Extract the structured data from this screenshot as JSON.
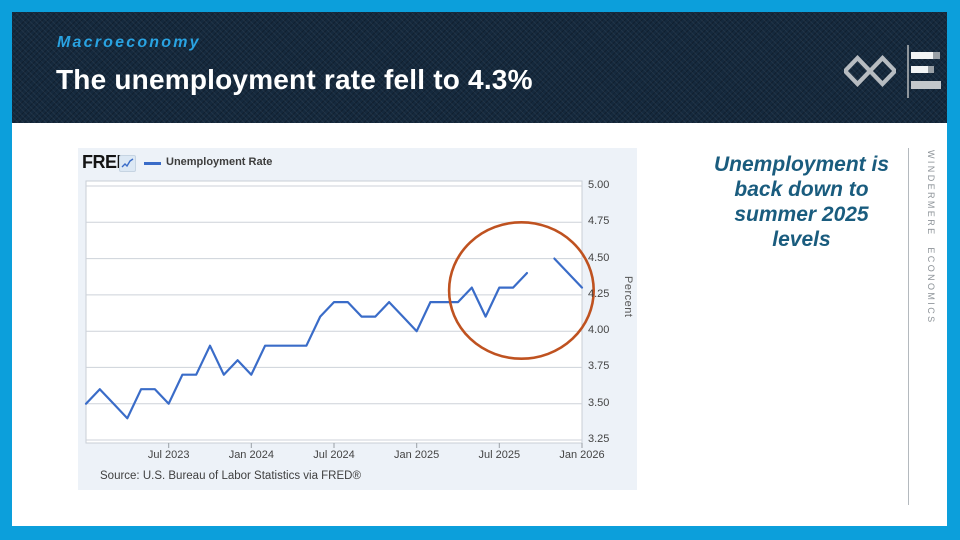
{
  "slide": {
    "eyebrow": "Macroeconomy",
    "title": "The unemployment rate fell to 4.3%",
    "callout": "Unemployment is back down to summer 2025 levels",
    "sidebar_brand": "WINDERMERE ECONOMICS",
    "accent_color": "#0c9fdb",
    "header_bg": "#15293d",
    "eyebrow_color": "#29a3e2",
    "callout_color": "#1a5c7e"
  },
  "fred": {
    "logo": "FRED",
    "legend_label": "Unemployment Rate",
    "source": "Source: U.S. Bureau of Labor Statistics via FRED®",
    "line_color": "#3a6cc8",
    "annotation_color": "#bf5220",
    "card_bg": "#edf2f8"
  },
  "chart_data": {
    "type": "line",
    "title": "Unemployment Rate",
    "xlabel": "",
    "ylabel": "Percent",
    "ylim": [
      3.25,
      5.0
    ],
    "grid": true,
    "legend_position": "top-left",
    "y_ticks": [
      "5.00",
      "4.75",
      "4.50",
      "4.25",
      "4.00",
      "3.75",
      "3.50",
      "3.25"
    ],
    "x_ticks": [
      "Jul 2023",
      "Jan 2024",
      "Jul 2024",
      "Jan 2025",
      "Jul 2025",
      "Jan 2026"
    ],
    "months": [
      "Jan 2023",
      "Feb 2023",
      "Mar 2023",
      "Apr 2023",
      "May 2023",
      "Jun 2023",
      "Jul 2023",
      "Aug 2023",
      "Sep 2023",
      "Oct 2023",
      "Nov 2023",
      "Dec 2023",
      "Jan 2024",
      "Feb 2024",
      "Mar 2024",
      "Apr 2024",
      "May 2024",
      "Jun 2024",
      "Jul 2024",
      "Aug 2024",
      "Sep 2024",
      "Oct 2024",
      "Nov 2024",
      "Dec 2024",
      "Jan 2025",
      "Feb 2025",
      "Mar 2025",
      "Apr 2025",
      "May 2025",
      "Jun 2025",
      "Jul 2025",
      "Aug 2025",
      "Sep 2025",
      "Oct 2025",
      "Nov 2025",
      "Dec 2025",
      "Jan 2026"
    ],
    "series": [
      {
        "name": "Unemployment Rate",
        "values": [
          3.5,
          3.6,
          3.5,
          3.4,
          3.6,
          3.6,
          3.5,
          3.7,
          3.7,
          3.9,
          3.7,
          3.8,
          3.7,
          3.9,
          3.9,
          3.9,
          3.9,
          4.1,
          4.2,
          4.2,
          4.1,
          4.1,
          4.2,
          4.1,
          4.0,
          4.2,
          4.2,
          4.2,
          4.3,
          4.1,
          4.3,
          4.3,
          4.4,
          null,
          4.5,
          4.4,
          4.3
        ]
      }
    ],
    "gap_note": "no data plotted for Oct 2025",
    "annotation": {
      "shape": "ellipse",
      "center_month": "Aug 2025",
      "center_month_offset": 0.6,
      "center_value": 4.28,
      "radius_months": 5.25,
      "radius_value": 0.47
    }
  }
}
